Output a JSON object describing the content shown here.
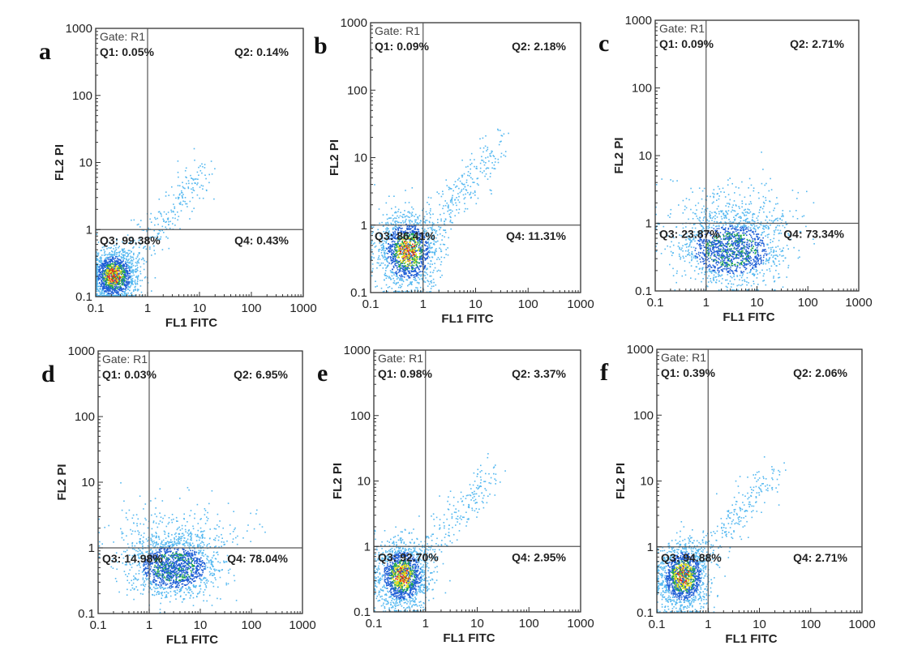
{
  "chart_data": [
    {
      "type": "scatter",
      "panel": "a",
      "gate": "Gate: R1",
      "xlabel": "FL1  FITC",
      "ylabel": "FL2  PI",
      "xscale": "log",
      "yscale": "log",
      "xlim": [
        0.1,
        1000
      ],
      "ylim": [
        0.1,
        1000
      ],
      "xticks": [
        "0.1",
        "1",
        "10",
        "100",
        "1000"
      ],
      "yticks": [
        "0.1",
        "1",
        "10",
        "100",
        "1000"
      ],
      "quadrant_gate": {
        "x": 1,
        "y": 1
      },
      "quadrants": {
        "Q1": "Q1: 0.05%",
        "Q2": "Q2: 0.14%",
        "Q3": "Q3: 99.38%",
        "Q4": "Q4: 0.43%"
      },
      "population": {
        "center": [
          0.22,
          0.2
        ],
        "spread": [
          0.22,
          0.2
        ],
        "tail": "diagonal",
        "dominant_quadrant": "Q3"
      }
    },
    {
      "type": "scatter",
      "panel": "b",
      "gate": "Gate: R1",
      "xlabel": "FL1  FITC",
      "ylabel": "FL2  PI",
      "xscale": "log",
      "yscale": "log",
      "xlim": [
        0.1,
        1000
      ],
      "ylim": [
        0.1,
        1000
      ],
      "xticks": [
        "0.1",
        "1",
        "10",
        "100",
        "1000"
      ],
      "yticks": [
        "0.1",
        "1",
        "10",
        "100",
        "1000"
      ],
      "quadrant_gate": {
        "x": 1,
        "y": 1
      },
      "quadrants": {
        "Q1": "Q1: 0.09%",
        "Q2": "Q2: 2.18%",
        "Q3": "Q3: 86.41%",
        "Q4": "Q4: 11.31%"
      },
      "population": {
        "center": [
          0.5,
          0.4
        ],
        "spread": [
          0.28,
          0.28
        ],
        "tail": "diagonal",
        "dominant_quadrant": "Q3"
      }
    },
    {
      "type": "scatter",
      "panel": "c",
      "gate": "Gate: R1",
      "xlabel": "FL1  FITC",
      "ylabel": "FL2  PI",
      "xscale": "log",
      "yscale": "log",
      "xlim": [
        0.1,
        1000
      ],
      "ylim": [
        0.1,
        1000
      ],
      "xticks": [
        "0.1",
        "1",
        "10",
        "100",
        "1000"
      ],
      "yticks": [
        "0.1",
        "1",
        "10",
        "100",
        "1000"
      ],
      "quadrant_gate": {
        "x": 1,
        "y": 1
      },
      "quadrants": {
        "Q1": "Q1: 0.09%",
        "Q2": "Q2: 2.71%",
        "Q3": "Q3: 23.87%",
        "Q4": "Q4: 73.34%"
      },
      "population": {
        "center": [
          3.0,
          0.4
        ],
        "spread": [
          0.5,
          0.25
        ],
        "tail": "horizontal",
        "dominant_quadrant": "Q4"
      }
    },
    {
      "type": "scatter",
      "panel": "d",
      "gate": "Gate: R1",
      "xlabel": "FL1  FITC",
      "ylabel": "FL2  PI",
      "xscale": "log",
      "yscale": "log",
      "xlim": [
        0.1,
        1000
      ],
      "ylim": [
        0.1,
        1000
      ],
      "xticks": [
        "0.1",
        "1",
        "10",
        "100",
        "1000"
      ],
      "yticks": [
        "0.1",
        "1",
        "10",
        "100",
        "1000"
      ],
      "quadrant_gate": {
        "x": 1,
        "y": 1
      },
      "quadrants": {
        "Q1": "Q1: 0.03%",
        "Q2": "Q2: 6.95%",
        "Q3": "Q3: 14.98%",
        "Q4": "Q4: 78.04%"
      },
      "population": {
        "center": [
          3.0,
          0.5
        ],
        "spread": [
          0.42,
          0.22
        ],
        "tail": "horizontal",
        "dominant_quadrant": "Q4"
      }
    },
    {
      "type": "scatter",
      "panel": "e",
      "gate": "Gate: R1",
      "xlabel": "FL1  FITC",
      "ylabel": "FL2  PI",
      "xscale": "log",
      "yscale": "log",
      "xlim": [
        0.1,
        1000
      ],
      "ylim": [
        0.1,
        1000
      ],
      "xticks": [
        "0.1",
        "1",
        "10",
        "100",
        "1000"
      ],
      "yticks": [
        "0.1",
        "1",
        "10",
        "100",
        "1000"
      ],
      "quadrant_gate": {
        "x": 1,
        "y": 1
      },
      "quadrants": {
        "Q1": "Q1: 0.98%",
        "Q2": "Q2: 3.37%",
        "Q3": "Q3: 92.70%",
        "Q4": "Q4: 2.95%"
      },
      "population": {
        "center": [
          0.35,
          0.35
        ],
        "spread": [
          0.25,
          0.25
        ],
        "tail": "diagonal",
        "dominant_quadrant": "Q3"
      }
    },
    {
      "type": "scatter",
      "panel": "f",
      "gate": "Gate: R1",
      "xlabel": "FL1  FITC",
      "ylabel": "FL2  PI",
      "xscale": "log",
      "yscale": "log",
      "xlim": [
        0.1,
        1000
      ],
      "ylim": [
        0.1,
        1000
      ],
      "xticks": [
        "0.1",
        "1",
        "10",
        "100",
        "1000"
      ],
      "yticks": [
        "0.1",
        "1",
        "10",
        "100",
        "1000"
      ],
      "quadrant_gate": {
        "x": 1,
        "y": 1
      },
      "quadrants": {
        "Q1": "Q1: 0.39%",
        "Q2": "Q2: 2.06%",
        "Q3": "Q3: 94.88%",
        "Q4": "Q4: 2.71%"
      },
      "population": {
        "center": [
          0.32,
          0.35
        ],
        "spread": [
          0.24,
          0.25
        ],
        "tail": "diagonal",
        "dominant_quadrant": "Q3"
      }
    }
  ],
  "colors": {
    "axis": "#333333",
    "density_low": "#55b8f0",
    "density_mid": "#1f5fd6",
    "density_high_1": "#1ea84a",
    "density_high_2": "#e8e21a",
    "density_peak": "#e2261c"
  }
}
